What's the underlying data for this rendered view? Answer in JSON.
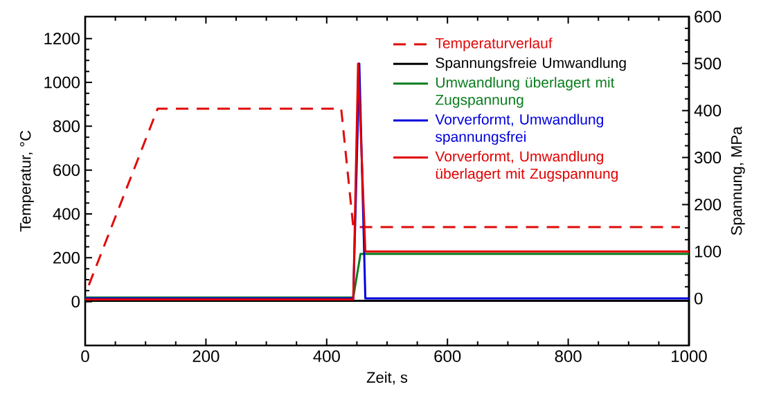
{
  "chart_data": {
    "type": "line",
    "xlabel": "Zeit, s",
    "ylabel": "Temperatur, °C",
    "y2label": "Spannung, MPa",
    "xlim": [
      0,
      1000
    ],
    "xticks": [
      0,
      200,
      400,
      600,
      800,
      1000
    ],
    "ylim": [
      -200,
      1300
    ],
    "yticks": [
      0,
      200,
      400,
      600,
      800,
      1000,
      1200
    ],
    "y2lim": [
      -100,
      600
    ],
    "y2ticks": [
      0,
      100,
      200,
      300,
      400,
      500,
      600
    ],
    "legend": "top right",
    "series": [
      {
        "name": "Temperaturverlauf",
        "color": "#e00a0a",
        "line_style": "dashed",
        "x": [
          6,
          120,
          424,
          444,
          985
        ],
        "values": [
          75,
          880,
          880,
          340,
          340
        ]
      },
      {
        "name": "Spannungsfreie Umwandlung",
        "color": "#000000",
        "axis": "y2",
        "x": [
          0,
          1000
        ],
        "values": [
          -5,
          -5
        ]
      },
      {
        "name": "Umwandlung überlagert mit Zugspannung",
        "color": "#0a7d1e",
        "axis": "y2",
        "x": [
          0,
          444,
          456,
          1000
        ],
        "values": [
          2,
          2,
          95,
          95
        ]
      },
      {
        "name": "Vorverformt, Umwandlung spannungsfrei",
        "color": "#0000dd",
        "axis": "y2",
        "x": [
          0,
          444,
          454,
          464,
          1000
        ],
        "values": [
          0,
          0,
          500,
          0,
          0
        ]
      },
      {
        "name": "Vorverformt, Umwandlung überlagert mit Zugspannung",
        "color": "#e00000",
        "axis": "y2",
        "x": [
          0,
          444,
          452,
          464,
          1000
        ],
        "values": [
          -2,
          -2,
          500,
          100,
          100
        ]
      }
    ]
  }
}
